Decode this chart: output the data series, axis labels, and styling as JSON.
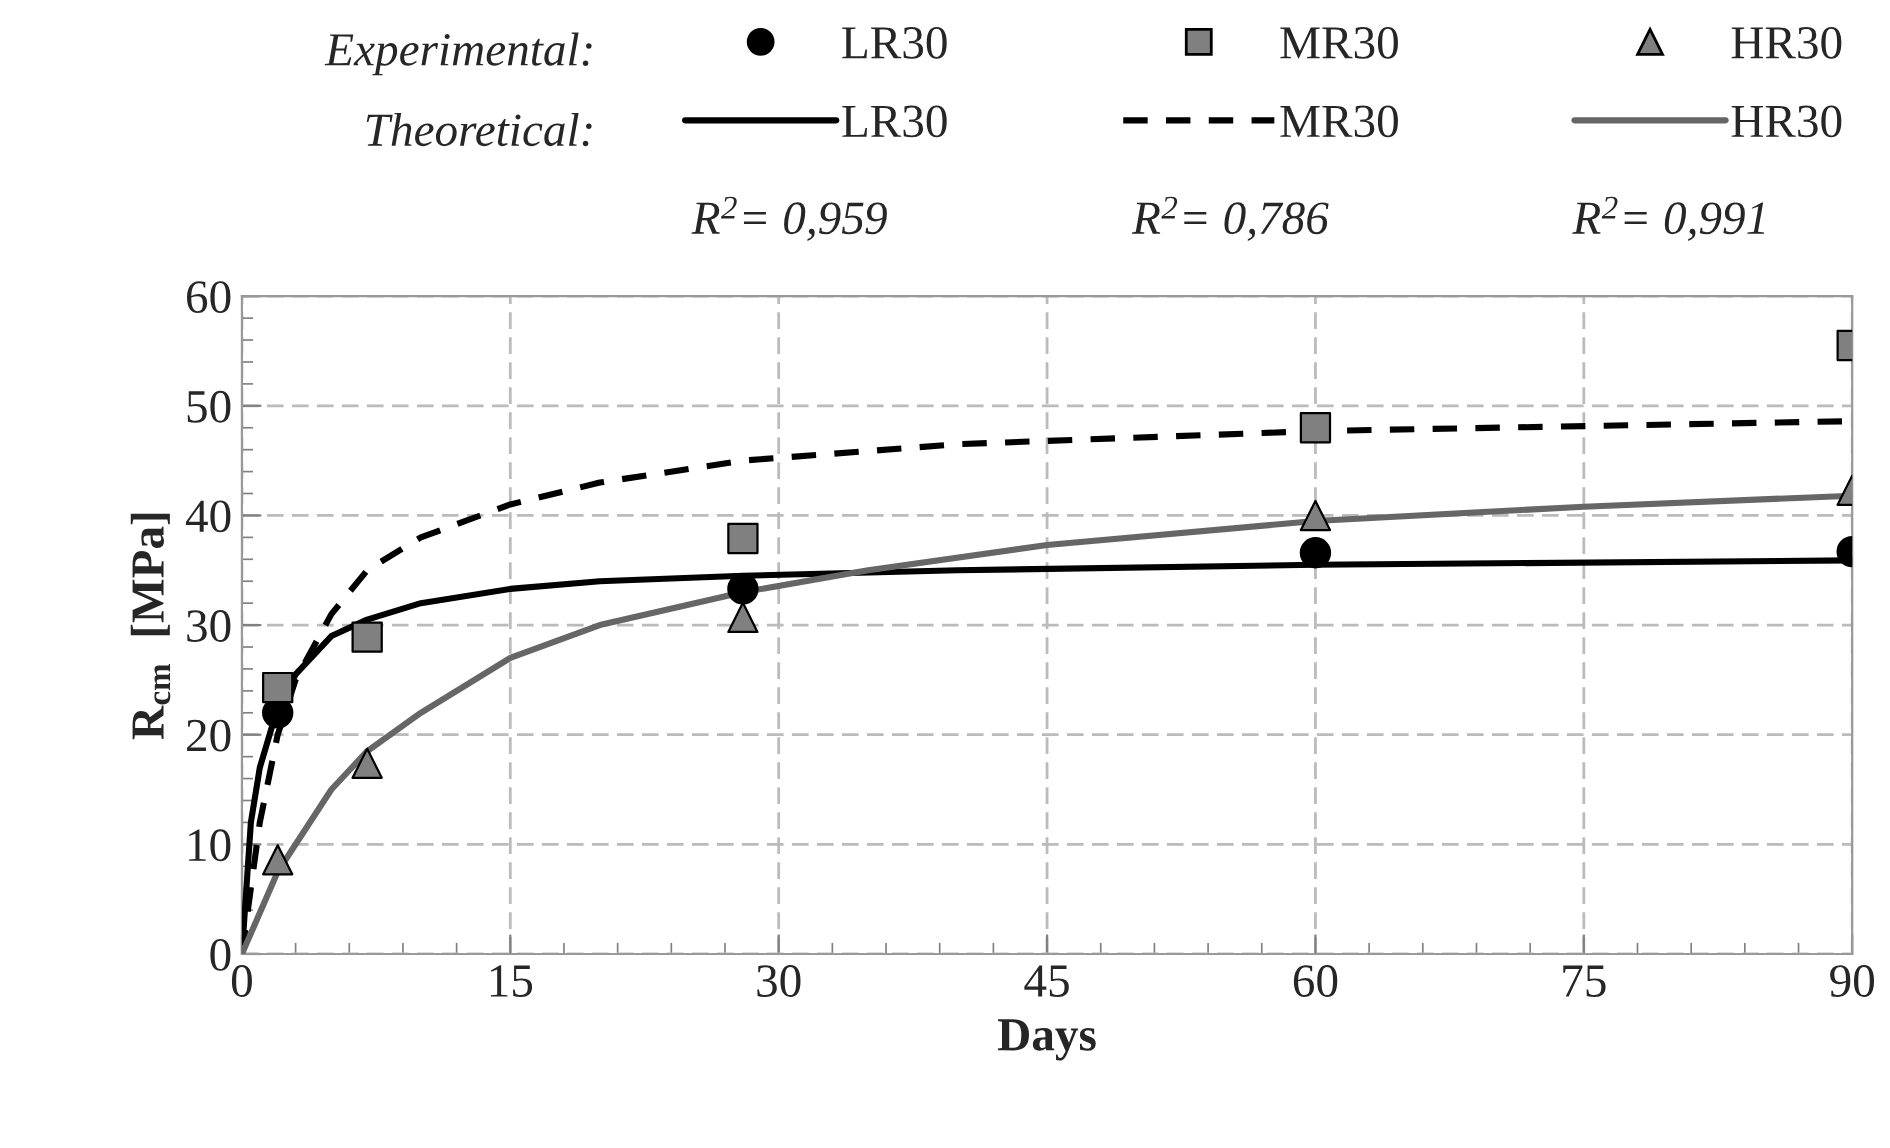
{
  "chart_data": {
    "type": "scatter",
    "xlabel": "Days",
    "ylabel": "R$_{cm}$  [MPa]",
    "xlim": [
      0,
      90
    ],
    "xticks": [
      0,
      15,
      30,
      45,
      60,
      75,
      90
    ],
    "ylim": [
      0,
      60
    ],
    "yticks": [
      0,
      10,
      20,
      30,
      40,
      50,
      60
    ],
    "grid": true,
    "legend": "top",
    "annotations": [
      "Experimental:",
      "Theoretical:",
      "R$^{2}$= 0,959",
      "R$^{2}$= 0,786",
      "R$^{2}$= 0,991"
    ],
    "series": [
      {
        "name": "LR30",
        "type": "scatter",
        "marker": "circle",
        "color": "#000000",
        "x": [
          2,
          28,
          60,
          90
        ],
        "values": [
          22.0,
          33.3,
          36.6,
          36.7
        ]
      },
      {
        "name": "LR30",
        "type": "line",
        "line_style": "solid",
        "color": "#000000",
        "x": [
          0,
          0.5,
          1,
          2,
          3,
          5,
          7,
          10,
          15,
          20,
          28,
          40,
          60,
          90
        ],
        "values": [
          0,
          12,
          17,
          22.5,
          25.5,
          29,
          30.5,
          32,
          33.3,
          34,
          34.5,
          35,
          35.5,
          35.9
        ]
      },
      {
        "name": "MR30",
        "type": "scatter",
        "marker": "square",
        "color": "#808080",
        "x": [
          2,
          7,
          28,
          60,
          90
        ],
        "values": [
          24.3,
          28.9,
          37.9,
          48.0,
          55.5
        ]
      },
      {
        "name": "MR30",
        "type": "line",
        "line_style": "dashed",
        "color": "#000000",
        "x": [
          0,
          1,
          2,
          3,
          5,
          7,
          10,
          15,
          20,
          28,
          40,
          60,
          90
        ],
        "values": [
          0,
          12,
          20,
          25,
          31,
          35,
          38,
          41,
          43,
          45,
          46.5,
          47.7,
          48.6
        ]
      },
      {
        "name": "HR30",
        "type": "scatter",
        "marker": "triangle",
        "color": "#808080",
        "x": [
          2,
          7,
          28,
          60,
          90
        ],
        "values": [
          8.6,
          17.4,
          30.7,
          40.0,
          42.3
        ]
      },
      {
        "name": "HR30",
        "type": "line",
        "line_style": "solid",
        "color": "#666666",
        "x": [
          0,
          2,
          5,
          7,
          10,
          15,
          20,
          28,
          35,
          45,
          60,
          75,
          90
        ],
        "values": [
          0,
          7.5,
          15,
          18.5,
          22,
          27,
          30,
          33,
          35,
          37.3,
          39.5,
          40.8,
          41.8
        ]
      }
    ]
  }
}
